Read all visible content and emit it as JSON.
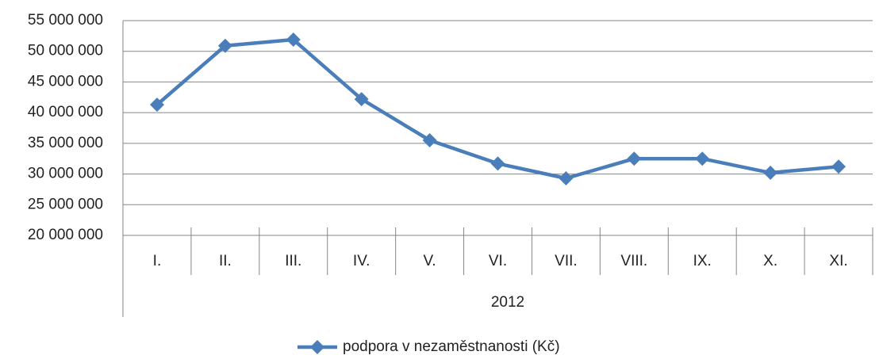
{
  "chart_data": {
    "type": "line",
    "categories": [
      "I.",
      "II.",
      "III.",
      "IV.",
      "V.",
      "VI.",
      "VII.",
      "VIII.",
      "IX.",
      "X.",
      "XI."
    ],
    "category_group": "2012",
    "series": [
      {
        "name": "podpora v nezaměstnanosti (Kč)",
        "color": "#4a7ebb",
        "values": [
          41300000,
          50900000,
          51900000,
          42200000,
          35500000,
          31700000,
          29300000,
          32500000,
          32500000,
          30200000,
          31200000
        ]
      }
    ],
    "ylim": [
      20000000,
      55000000
    ],
    "yticks": [
      {
        "value": 20000000,
        "label": "20 000 000"
      },
      {
        "value": 25000000,
        "label": "25 000 000"
      },
      {
        "value": 30000000,
        "label": "30 000 000"
      },
      {
        "value": 35000000,
        "label": "35 000 000"
      },
      {
        "value": 40000000,
        "label": "40 000 000"
      },
      {
        "value": 45000000,
        "label": "45 000 000"
      },
      {
        "value": 50000000,
        "label": "50 000 000"
      },
      {
        "value": 55000000,
        "label": "55 000 000"
      }
    ],
    "grid": true,
    "legend": "bottom"
  }
}
